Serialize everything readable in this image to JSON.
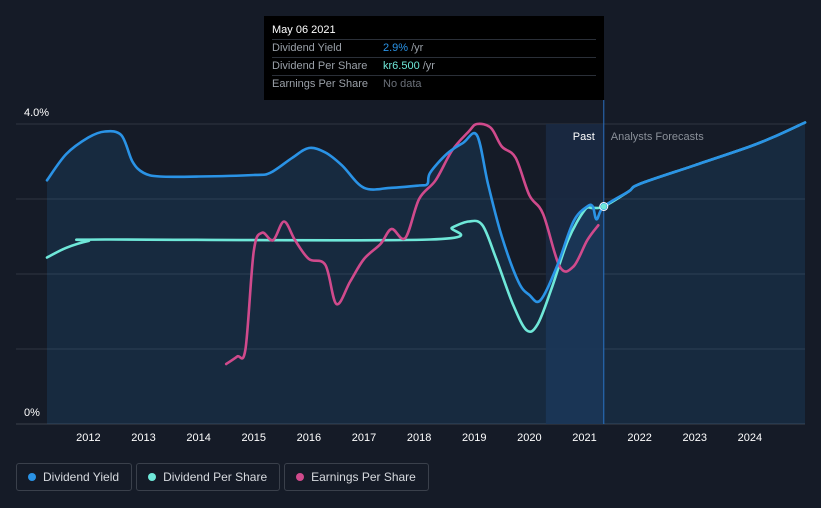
{
  "tooltip": {
    "date": "May 06 2021",
    "rows": [
      {
        "label": "Dividend Yield",
        "value": "2.9%",
        "unit": "/yr",
        "color": "#2a93e6"
      },
      {
        "label": "Dividend Per Share",
        "value": "kr6.500",
        "unit": "/yr",
        "color": "#6fe8d9"
      },
      {
        "label": "Earnings Per Share",
        "value": "No data",
        "unit": "",
        "color": "#6b7079"
      }
    ]
  },
  "legend": [
    {
      "label": "Dividend Yield",
      "color": "#2a93e6"
    },
    {
      "label": "Dividend Per Share",
      "color": "#6fe8d9"
    },
    {
      "label": "Earnings Per Share",
      "color": "#d04a8c"
    }
  ],
  "colors": {
    "background": "#151b27",
    "past_band": "#1a2a44",
    "grid": "#2e3440",
    "axis_text": "#ffffff",
    "dividend_yield": "#2a93e6",
    "dividend_per_share": "#6fe8d9",
    "earnings_per_share": "#d04a8c"
  },
  "chart_data": {
    "type": "line",
    "x_unit": "year",
    "xlim": [
      2011.2,
      2025.0
    ],
    "ylim": [
      0,
      4.0
    ],
    "ytick_labels": [
      {
        "value": 4.0,
        "label": "4.0%"
      },
      {
        "value": 0,
        "label": "0%"
      }
    ],
    "xtick_labels": [
      "2012",
      "2013",
      "2014",
      "2015",
      "2016",
      "2017",
      "2018",
      "2019",
      "2020",
      "2021",
      "2022",
      "2023",
      "2024"
    ],
    "gridlines": [
      4.0,
      3.0,
      2.0,
      1.0
    ],
    "past_label": "Past",
    "forecast_label": "Analysts Forecasts",
    "past_band": [
      2020.3,
      2021.35
    ],
    "marker_x": 2021.35,
    "series": [
      {
        "name": "Dividend Yield",
        "color": "#2a93e6",
        "area": true,
        "points": [
          [
            2011.25,
            3.25
          ],
          [
            2011.6,
            3.6
          ],
          [
            2012.0,
            3.82
          ],
          [
            2012.3,
            3.9
          ],
          [
            2012.6,
            3.85
          ],
          [
            2012.8,
            3.5
          ],
          [
            2013.0,
            3.35
          ],
          [
            2013.3,
            3.3
          ],
          [
            2014.0,
            3.3
          ],
          [
            2015.0,
            3.32
          ],
          [
            2015.3,
            3.35
          ],
          [
            2015.7,
            3.55
          ],
          [
            2016.0,
            3.68
          ],
          [
            2016.3,
            3.62
          ],
          [
            2016.6,
            3.45
          ],
          [
            2017.0,
            3.15
          ],
          [
            2017.5,
            3.15
          ],
          [
            2018.0,
            3.18
          ],
          [
            2018.15,
            3.2
          ],
          [
            2018.2,
            3.35
          ],
          [
            2018.5,
            3.6
          ],
          [
            2018.8,
            3.75
          ],
          [
            2019.05,
            3.85
          ],
          [
            2019.25,
            3.2
          ],
          [
            2019.5,
            2.5
          ],
          [
            2019.8,
            1.9
          ],
          [
            2020.0,
            1.72
          ],
          [
            2020.2,
            1.65
          ],
          [
            2020.5,
            2.1
          ],
          [
            2020.8,
            2.7
          ],
          [
            2021.05,
            2.9
          ],
          [
            2021.15,
            2.9
          ],
          [
            2021.22,
            2.73
          ],
          [
            2021.35,
            2.9
          ],
          [
            2021.8,
            3.1
          ],
          [
            2022.0,
            3.2
          ],
          [
            2023.0,
            3.45
          ],
          [
            2024.0,
            3.7
          ],
          [
            2024.5,
            3.85
          ],
          [
            2025.0,
            4.02
          ]
        ]
      },
      {
        "name": "Dividend Per Share",
        "color": "#6fe8d9",
        "area": false,
        "points": [
          [
            2011.25,
            2.22
          ],
          [
            2011.6,
            2.35
          ],
          [
            2012.0,
            2.44
          ],
          [
            2012.3,
            2.46
          ],
          [
            2018.2,
            2.46
          ],
          [
            2018.6,
            2.62
          ],
          [
            2018.9,
            2.7
          ],
          [
            2019.15,
            2.65
          ],
          [
            2019.4,
            2.2
          ],
          [
            2019.7,
            1.6
          ],
          [
            2019.95,
            1.25
          ],
          [
            2020.15,
            1.33
          ],
          [
            2020.4,
            1.8
          ],
          [
            2020.7,
            2.45
          ],
          [
            2021.0,
            2.85
          ],
          [
            2021.15,
            2.88
          ],
          [
            2021.35,
            2.9
          ],
          [
            2021.8,
            3.1
          ],
          [
            2022.0,
            3.2
          ],
          [
            2023.0,
            3.45
          ],
          [
            2024.0,
            3.7
          ],
          [
            2024.5,
            3.85
          ],
          [
            2025.0,
            4.02
          ]
        ]
      },
      {
        "name": "Earnings Per Share",
        "color": "#d04a8c",
        "area": false,
        "points": [
          [
            2014.5,
            0.8
          ],
          [
            2014.7,
            0.9
          ],
          [
            2014.85,
            1.0
          ],
          [
            2015.0,
            2.3
          ],
          [
            2015.15,
            2.55
          ],
          [
            2015.35,
            2.45
          ],
          [
            2015.55,
            2.7
          ],
          [
            2015.75,
            2.45
          ],
          [
            2016.0,
            2.2
          ],
          [
            2016.3,
            2.12
          ],
          [
            2016.5,
            1.6
          ],
          [
            2016.75,
            1.9
          ],
          [
            2017.0,
            2.2
          ],
          [
            2017.3,
            2.4
          ],
          [
            2017.5,
            2.6
          ],
          [
            2017.75,
            2.48
          ],
          [
            2018.0,
            3.0
          ],
          [
            2018.3,
            3.25
          ],
          [
            2018.6,
            3.65
          ],
          [
            2018.9,
            3.9
          ],
          [
            2019.05,
            4.0
          ],
          [
            2019.3,
            3.95
          ],
          [
            2019.5,
            3.7
          ],
          [
            2019.75,
            3.55
          ],
          [
            2020.0,
            3.05
          ],
          [
            2020.25,
            2.8
          ],
          [
            2020.55,
            2.1
          ],
          [
            2020.8,
            2.1
          ],
          [
            2021.05,
            2.45
          ],
          [
            2021.25,
            2.65
          ]
        ]
      }
    ]
  }
}
